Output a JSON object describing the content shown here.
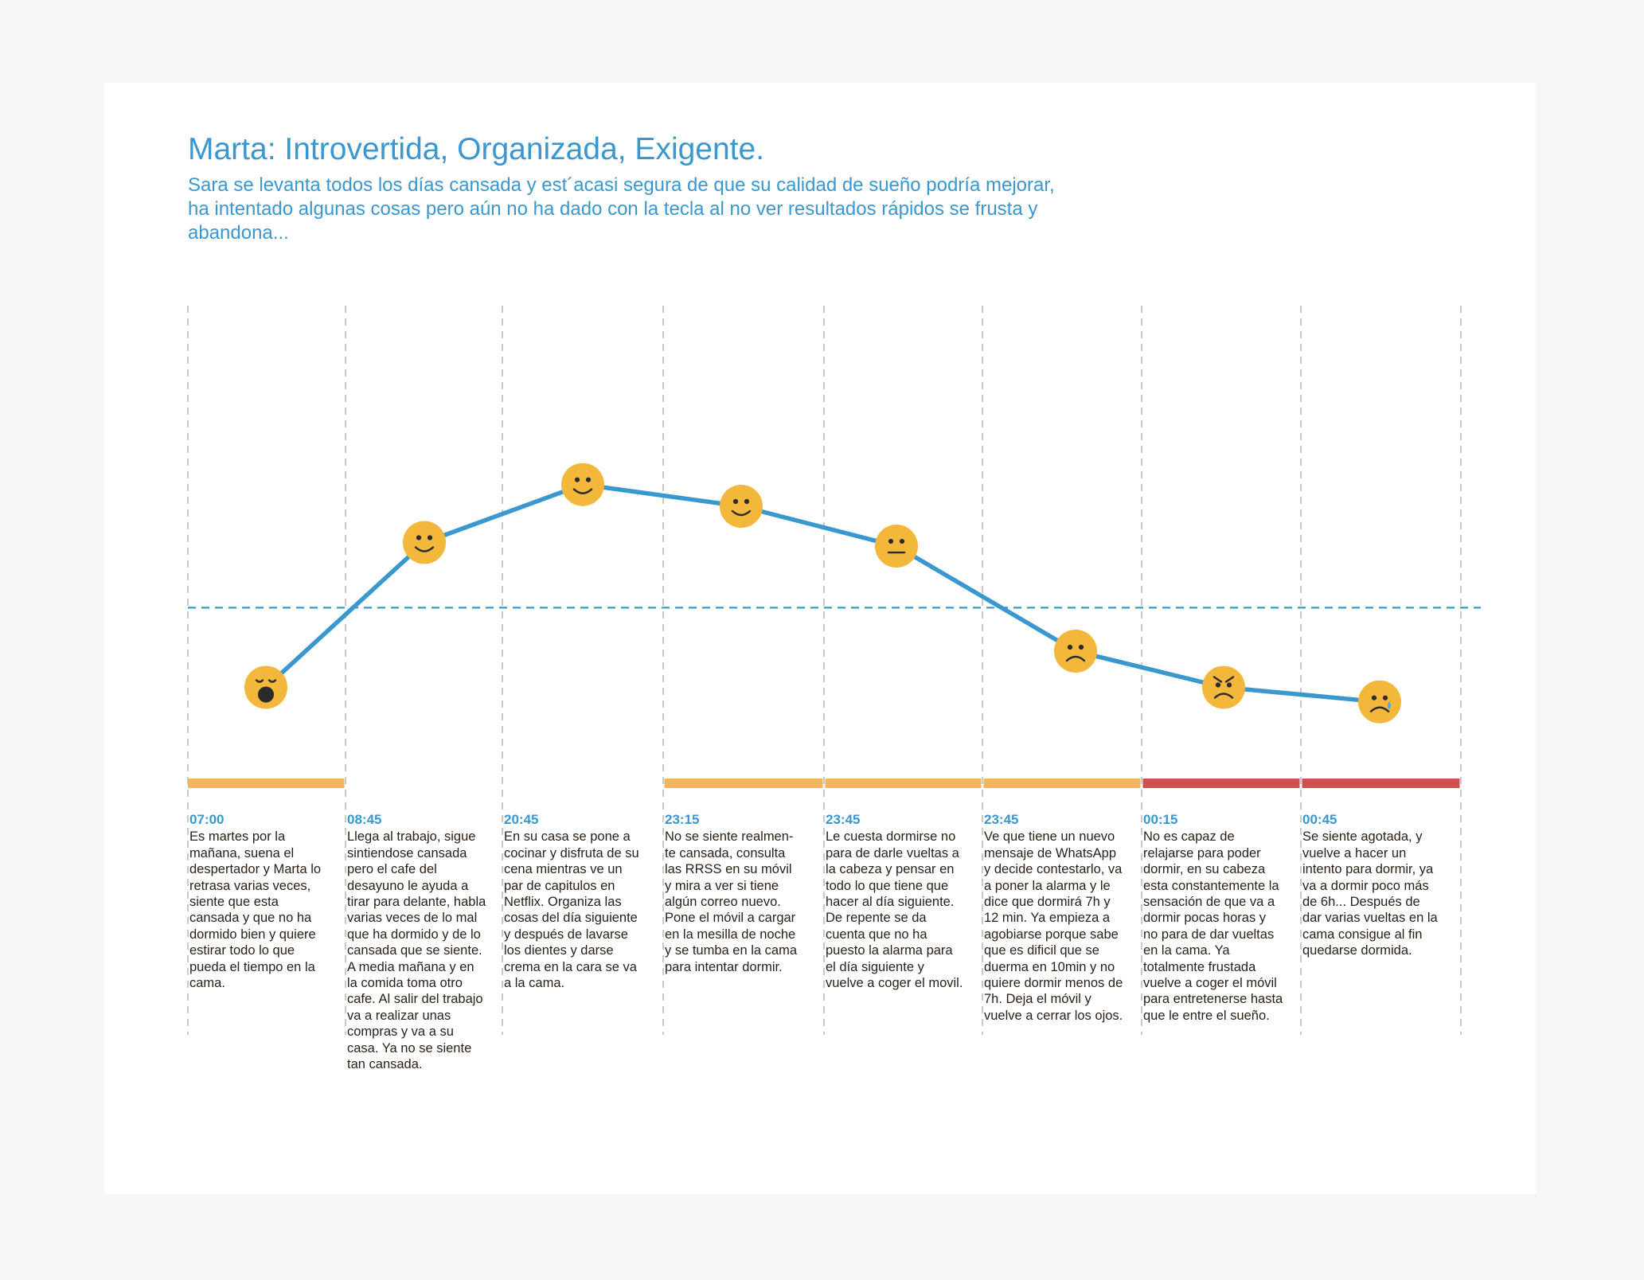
{
  "persona": {
    "title": "Marta: Introvertida, Organizada, Exigente.",
    "summary": "Sara se levanta todos los días cansada y est´acasi segura de que su calidad de sueño podría mejorar, ha intentado algunas cosas pero aún no ha dado con la tecla al no ver resultados rápidos se frusta y abandona..."
  },
  "colors": {
    "accent": "#3a97cf",
    "face": "#f2b73b",
    "bar_moderate": "#f2b560",
    "bar_severe": "#d05050",
    "divider": "#c9c9c9"
  },
  "steps": [
    {
      "time": "07:00",
      "mood": 3.0,
      "emotion": "yawning-face-icon",
      "bar": "moderate",
      "text": "Es martes por la mañana, suena el despertador y Marta lo retrasa varias veces, siente que esta cansada y que no ha dormido bien y quiere estirar todo lo que pueda el tiempo en la cama."
    },
    {
      "time": "08:45",
      "mood": 7.0,
      "emotion": "smiling-face-icon",
      "bar": "none",
      "text": "Llega al trabajo, sigue sintiendose cansada pero el cafe del desayuno le ayuda a tirar para delante, habla varias veces de lo mal que ha dormido y de lo cansada que se siente. A media mañana y en la comida toma otro cafe. Al salir del trabajo va a realizar unas compras y va a su casa. Ya no se siente tan cansada."
    },
    {
      "time": "20:45",
      "mood": 8.6,
      "emotion": "smiling-face-icon",
      "bar": "none",
      "text": "En su casa se pone a cocinar y disfruta de su cena mientras ve un par de capitulos en Netflix. Organiza las cosas del día siguiente y después de lavarse los dientes y darse crema en la cara se va a la cama."
    },
    {
      "time": "23:15",
      "mood": 8.0,
      "emotion": "smiling-face-icon",
      "bar": "moderate",
      "text": "No se siente realmen-te cansada, consulta las RRSS en su móvil y mira a ver si tiene algún correo nuevo. Pone el móvil a cargar en la mesilla de noche y se tumba en la cama para intentar dormir."
    },
    {
      "time": "23:45",
      "mood": 6.9,
      "emotion": "neutral-face-icon",
      "bar": "moderate",
      "text": "Le cuesta dormirse no para de darle vueltas a la cabeza y pensar en todo lo que tiene que hacer al día siguiente. De repente se da cuenta que no ha puesto la alarma para el día siguiente y vuelve a coger el movil."
    },
    {
      "time": "23:45",
      "mood": 4.0,
      "emotion": "frowning-face-icon",
      "bar": "moderate",
      "text": "Ve que tiene un nuevo mensaje de WhatsApp y decide contestarlo, va a poner la alarma y le dice que dormirá 7h y 12 min. Ya empieza a agobiarse porque sabe que es dificil que se duerma en 10min y no quiere dormir menos de 7h. Deja el móvil y vuelve a cerrar los ojos."
    },
    {
      "time": "00:15",
      "mood": 3.0,
      "emotion": "angry-face-icon",
      "bar": "severe",
      "text": "No es capaz de relajarse para poder dormir, en su cabeza esta constantemente la sensación de que va a dormir pocas horas y no para de dar vueltas en la cama. Ya totalmente frustada vuelve a coger el móvil para entretenerse hasta que le entre el sueño."
    },
    {
      "time": "00:45",
      "mood": 2.6,
      "emotion": "crying-face-icon",
      "bar": "severe",
      "text": "Se siente agotada, y vuelve a hacer un intento para dormir, ya va a dormir poco más de 6h... Después de dar varias vueltas en la cama consigue al fin quedarse dormida."
    }
  ]
}
